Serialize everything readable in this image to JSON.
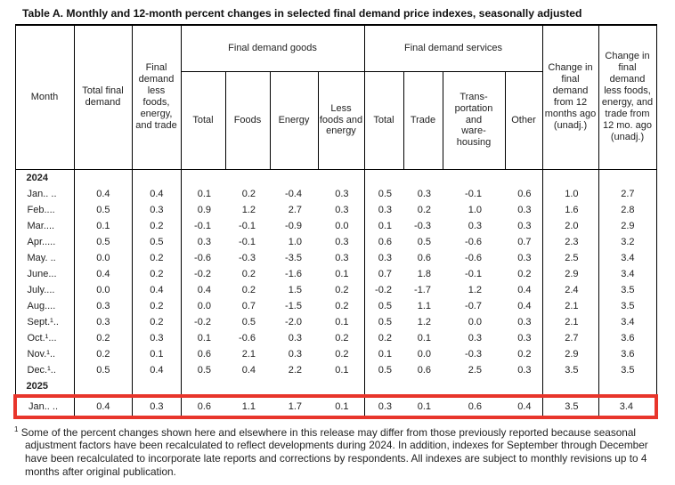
{
  "title": "Table A. Monthly and 12-month percent changes in selected final demand price indexes, seasonally adjusted",
  "colors": {
    "highlight_red": "#e8352b",
    "border_black": "#000000",
    "text": "#222222"
  },
  "table": {
    "header": {
      "month": "Month",
      "total_final_demand": "Total final demand",
      "fd_less_fet": "Final demand less foods, energy, and trade",
      "goods_group": "Final demand goods",
      "services_group": "Final demand services",
      "goods_cols": [
        "Total",
        "Foods",
        "Energy",
        "Less foods and energy"
      ],
      "services_cols": [
        "Total",
        "Trade",
        "Trans-\nportation\nand\nware-\nhousing",
        "Other"
      ],
      "change_12mo": "Change in final demand from 12 months ago (unadj.)",
      "change_12mo_less": "Change in final demand less foods, energy, and trade from 12 mo. ago (unadj.)"
    },
    "rows": [
      {
        "type": "year",
        "label": "2024"
      },
      {
        "type": "data",
        "label": "Jan.. ..",
        "values": [
          "0.4",
          "0.4",
          "0.1",
          "0.2",
          "-0.4",
          "0.3",
          "0.5",
          "0.3",
          "-0.1",
          "0.6",
          "1.0",
          "2.7"
        ]
      },
      {
        "type": "data",
        "label": "Feb....",
        "values": [
          "0.5",
          "0.3",
          "0.9",
          "1.2",
          "2.7",
          "0.3",
          "0.3",
          "0.2",
          "1.0",
          "0.3",
          "1.6",
          "2.8"
        ]
      },
      {
        "type": "data",
        "label": "Mar....",
        "values": [
          "0.1",
          "0.2",
          "-0.1",
          "-0.1",
          "-0.9",
          "0.0",
          "0.1",
          "-0.3",
          "0.3",
          "0.3",
          "2.0",
          "2.9"
        ]
      },
      {
        "type": "data",
        "label": "Apr.....",
        "values": [
          "0.5",
          "0.5",
          "0.3",
          "-0.1",
          "1.0",
          "0.3",
          "0.6",
          "0.5",
          "-0.6",
          "0.7",
          "2.3",
          "3.2"
        ]
      },
      {
        "type": "data",
        "label": "May. ..",
        "values": [
          "0.0",
          "0.2",
          "-0.6",
          "-0.3",
          "-3.5",
          "0.3",
          "0.3",
          "0.6",
          "-0.6",
          "0.3",
          "2.5",
          "3.4"
        ]
      },
      {
        "type": "data",
        "label": "June...",
        "values": [
          "0.4",
          "0.2",
          "-0.2",
          "0.2",
          "-1.6",
          "0.1",
          "0.7",
          "1.8",
          "-0.1",
          "0.2",
          "2.9",
          "3.4"
        ]
      },
      {
        "type": "data",
        "label": "July....",
        "values": [
          "0.0",
          "0.4",
          "0.4",
          "0.2",
          "1.5",
          "0.2",
          "-0.2",
          "-1.7",
          "1.2",
          "0.4",
          "2.4",
          "3.5"
        ]
      },
      {
        "type": "data",
        "label": "Aug....",
        "values": [
          "0.3",
          "0.2",
          "0.0",
          "0.7",
          "-1.5",
          "0.2",
          "0.5",
          "1.1",
          "-0.7",
          "0.4",
          "2.1",
          "3.5"
        ]
      },
      {
        "type": "data",
        "label": "Sept.¹..",
        "values": [
          "0.3",
          "0.2",
          "-0.2",
          "0.5",
          "-2.0",
          "0.1",
          "0.5",
          "1.2",
          "0.0",
          "0.3",
          "2.1",
          "3.4"
        ]
      },
      {
        "type": "data",
        "label": "Oct.¹...",
        "values": [
          "0.2",
          "0.3",
          "0.1",
          "-0.6",
          "0.3",
          "0.2",
          "0.2",
          "0.1",
          "0.3",
          "0.3",
          "2.7",
          "3.6"
        ]
      },
      {
        "type": "data",
        "label": "Nov.¹..",
        "values": [
          "0.2",
          "0.1",
          "0.6",
          "2.1",
          "0.3",
          "0.2",
          "0.1",
          "0.0",
          "-0.3",
          "0.2",
          "2.9",
          "3.6"
        ]
      },
      {
        "type": "data",
        "label": "Dec.¹..",
        "values": [
          "0.5",
          "0.4",
          "0.5",
          "0.4",
          "2.2",
          "0.1",
          "0.5",
          "0.6",
          "2.5",
          "0.3",
          "3.5",
          "3.5"
        ]
      },
      {
        "type": "year",
        "label": "2025"
      },
      {
        "type": "data",
        "label": "Jan.. ..",
        "highlight": true,
        "values": [
          "0.4",
          "0.3",
          "0.6",
          "1.1",
          "1.7",
          "0.1",
          "0.3",
          "0.1",
          "0.6",
          "0.4",
          "3.5",
          "3.4"
        ]
      }
    ]
  },
  "footnote": {
    "sup": "1",
    "text": "Some of the percent changes shown here and elsewhere in this release may differ from those previously reported because seasonal adjustment factors have been recalculated to reflect developments during 2024. In addition, indexes for September through December have been recalculated to incorporate late reports and corrections by respondents. All indexes are subject to monthly revisions up to 4 months after original publication."
  }
}
